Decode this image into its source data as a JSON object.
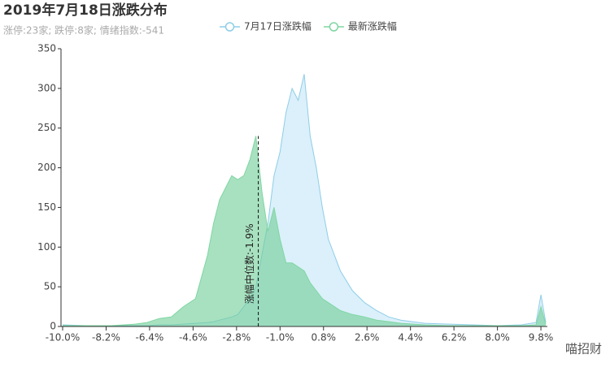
{
  "chart_data": {
    "type": "area",
    "title": "2019年7月18日涨跌分布",
    "subtitle": "涨停:23家; 跌停:8家; 情绪指数:-541",
    "x": [
      -10,
      -9,
      -8,
      -7,
      -6.5,
      -6,
      -5.5,
      -5,
      -4.5,
      -4,
      -3.75,
      -3.5,
      -3.25,
      -3,
      -2.75,
      -2.5,
      -2.25,
      -2,
      -1.75,
      -1.5,
      -1.25,
      -1,
      -0.75,
      -0.5,
      -0.25,
      0,
      0.25,
      0.5,
      0.75,
      1,
      1.25,
      1.5,
      2,
      2.5,
      3,
      3.5,
      4,
      5,
      6,
      7,
      8,
      9,
      9.6,
      9.8,
      10
    ],
    "series": [
      {
        "name": "7月17日涨跌幅",
        "color": "#8fcde8",
        "fill": "rgba(190,228,245,0.55)",
        "values": [
          2,
          1,
          1,
          1,
          1,
          2,
          2,
          3,
          4,
          5,
          6,
          8,
          10,
          12,
          15,
          25,
          35,
          50,
          90,
          130,
          190,
          220,
          270,
          300,
          285,
          318,
          240,
          200,
          150,
          110,
          90,
          70,
          45,
          30,
          20,
          12,
          8,
          4,
          3,
          2,
          1,
          2,
          5,
          40,
          5
        ]
      },
      {
        "name": "最新涨跌幅",
        "color": "#7fd6a2",
        "fill": "rgba(110,205,150,0.6)",
        "values": [
          1,
          1,
          1,
          3,
          5,
          10,
          12,
          25,
          35,
          90,
          130,
          160,
          175,
          190,
          185,
          190,
          210,
          240,
          170,
          120,
          150,
          110,
          80,
          80,
          75,
          70,
          55,
          45,
          35,
          30,
          25,
          20,
          15,
          12,
          8,
          6,
          4,
          2,
          1,
          1,
          1,
          1,
          2,
          25,
          3
        ]
      }
    ],
    "annotation": {
      "text": "涨幅中位数:-1.9%",
      "x": -1.9
    },
    "watermark": "喵招财",
    "xlim": [
      -10,
      10
    ],
    "xticks": [
      {
        "value": -10,
        "label": "-10.0%"
      },
      {
        "value": -8.2,
        "label": "-8.2%"
      },
      {
        "value": -6.4,
        "label": "-6.4%"
      },
      {
        "value": -4.6,
        "label": "-4.6%"
      },
      {
        "value": -2.8,
        "label": "-2.8%"
      },
      {
        "value": -1,
        "label": "-1.0%"
      },
      {
        "value": 0.8,
        "label": "0.8%"
      },
      {
        "value": 2.6,
        "label": "2.6%"
      },
      {
        "value": 4.4,
        "label": "4.4%"
      },
      {
        "value": 6.2,
        "label": "6.2%"
      },
      {
        "value": 8,
        "label": "8.0%"
      },
      {
        "value": 9.8,
        "label": "9.8%"
      }
    ],
    "ylim": [
      0,
      350
    ],
    "yticks": [
      0,
      50,
      100,
      150,
      200,
      250,
      300,
      350
    ],
    "grid": false
  }
}
